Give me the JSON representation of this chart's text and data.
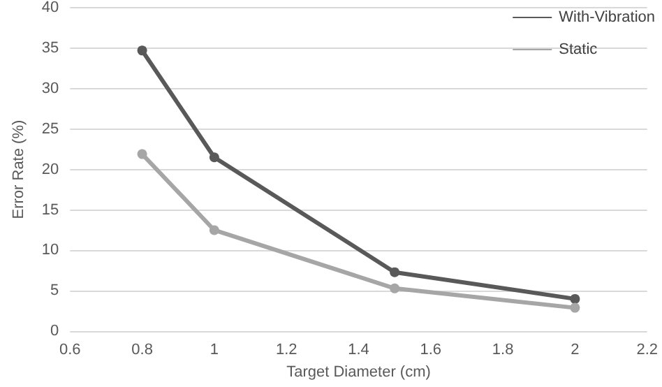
{
  "chart_data": {
    "type": "line",
    "xlabel": "Target Diameter (cm)",
    "ylabel": "Error Rate (%)",
    "series": [
      {
        "name": "With-Vibration",
        "color": "#595959",
        "x": [
          0.8,
          1,
          1.5,
          2
        ],
        "values": [
          34.7,
          21.5,
          7.3,
          4.0
        ]
      },
      {
        "name": "Static",
        "color": "#a6a6a6",
        "x": [
          0.8,
          1,
          1.5,
          2
        ],
        "values": [
          21.9,
          12.5,
          5.3,
          2.9
        ]
      }
    ],
    "xlim": [
      0.6,
      2.2
    ],
    "xticks": [
      0.6,
      0.8,
      1,
      1.2,
      1.4,
      1.6,
      1.8,
      2,
      2.2
    ],
    "ylim": [
      0,
      40
    ],
    "yticks": [
      0,
      5,
      10,
      15,
      20,
      25,
      30,
      35,
      40
    ],
    "grid": "y",
    "legend": "top right",
    "marker": "circle",
    "line_style": "solid"
  }
}
